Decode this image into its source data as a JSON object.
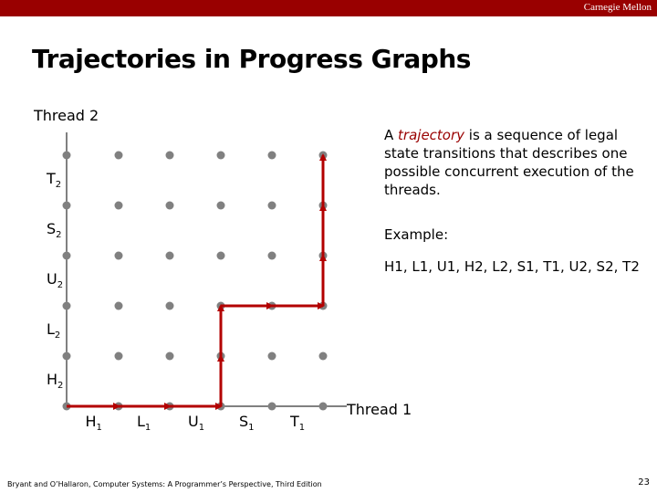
{
  "header": {
    "org": "Carnegie Mellon"
  },
  "title": "Trajectories in Progress Graphs",
  "graph": {
    "y_axis_title": "Thread 2",
    "x_axis_title": "Thread 1",
    "x_labels": [
      {
        "base": "H",
        "sub": "1"
      },
      {
        "base": "L",
        "sub": "1"
      },
      {
        "base": "U",
        "sub": "1"
      },
      {
        "base": "S",
        "sub": "1"
      },
      {
        "base": "T",
        "sub": "1"
      }
    ],
    "y_labels": [
      {
        "base": "H",
        "sub": "2"
      },
      {
        "base": "L",
        "sub": "2"
      },
      {
        "base": "U",
        "sub": "2"
      },
      {
        "base": "S",
        "sub": "2"
      },
      {
        "base": "T",
        "sub": "2"
      }
    ],
    "trajectory": [
      "H1",
      "L1",
      "U1",
      "H2",
      "L2",
      "S1",
      "T1",
      "U2",
      "S2",
      "T2"
    ],
    "trajectory_color": "#b30000",
    "dot_color": "#808080"
  },
  "description": {
    "before": "A ",
    "emphasis": "trajectory",
    "after": " is a sequence of legal state transitions that describes one possible concurrent execution of the threads."
  },
  "example_label": "Example:",
  "example_sequence": "H1, L1, U1, H2, L2,  S1, T1, U2, S2, T2",
  "footer": "Bryant and O’Hallaron, Computer Systems: A Programmer’s Perspective, Third Edition",
  "page_number": "23"
}
